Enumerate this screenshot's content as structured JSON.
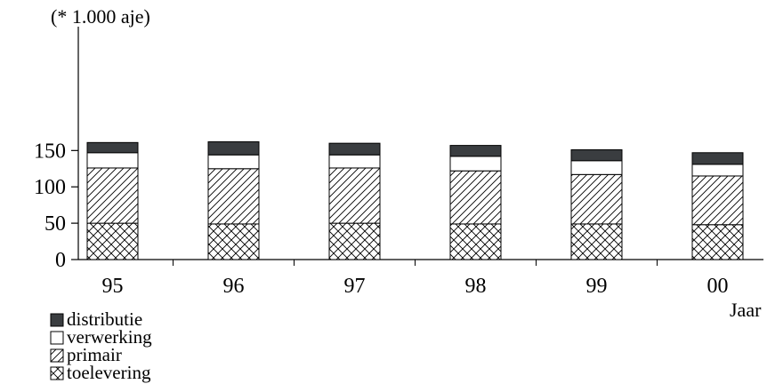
{
  "chart_data": {
    "type": "bar",
    "stacked": true,
    "y_unit_label": "(* 1.000 aje)",
    "xlabel": "Jaar",
    "ylim": [
      0,
      175
    ],
    "yticks": [
      0,
      50,
      100,
      150
    ],
    "categories": [
      "95",
      "96",
      "97",
      "98",
      "99",
      "00"
    ],
    "series": [
      {
        "name": "toelevering",
        "pattern": "crosshatch",
        "values": [
          50,
          49,
          50,
          49,
          49,
          48
        ]
      },
      {
        "name": "primair",
        "pattern": "diagonal",
        "values": [
          76,
          76,
          76,
          73,
          68,
          67
        ]
      },
      {
        "name": "verwerking",
        "pattern": "empty",
        "values": [
          21,
          19,
          18,
          20,
          19,
          16
        ]
      },
      {
        "name": "distributie",
        "pattern": "solid",
        "color": "#3a3d40",
        "values": [
          14,
          18,
          16,
          15,
          15,
          16
        ]
      }
    ],
    "legend_order": [
      "distributie",
      "verwerking",
      "primair",
      "toelevering"
    ],
    "legend_position": "bottom-left",
    "grid": false
  }
}
